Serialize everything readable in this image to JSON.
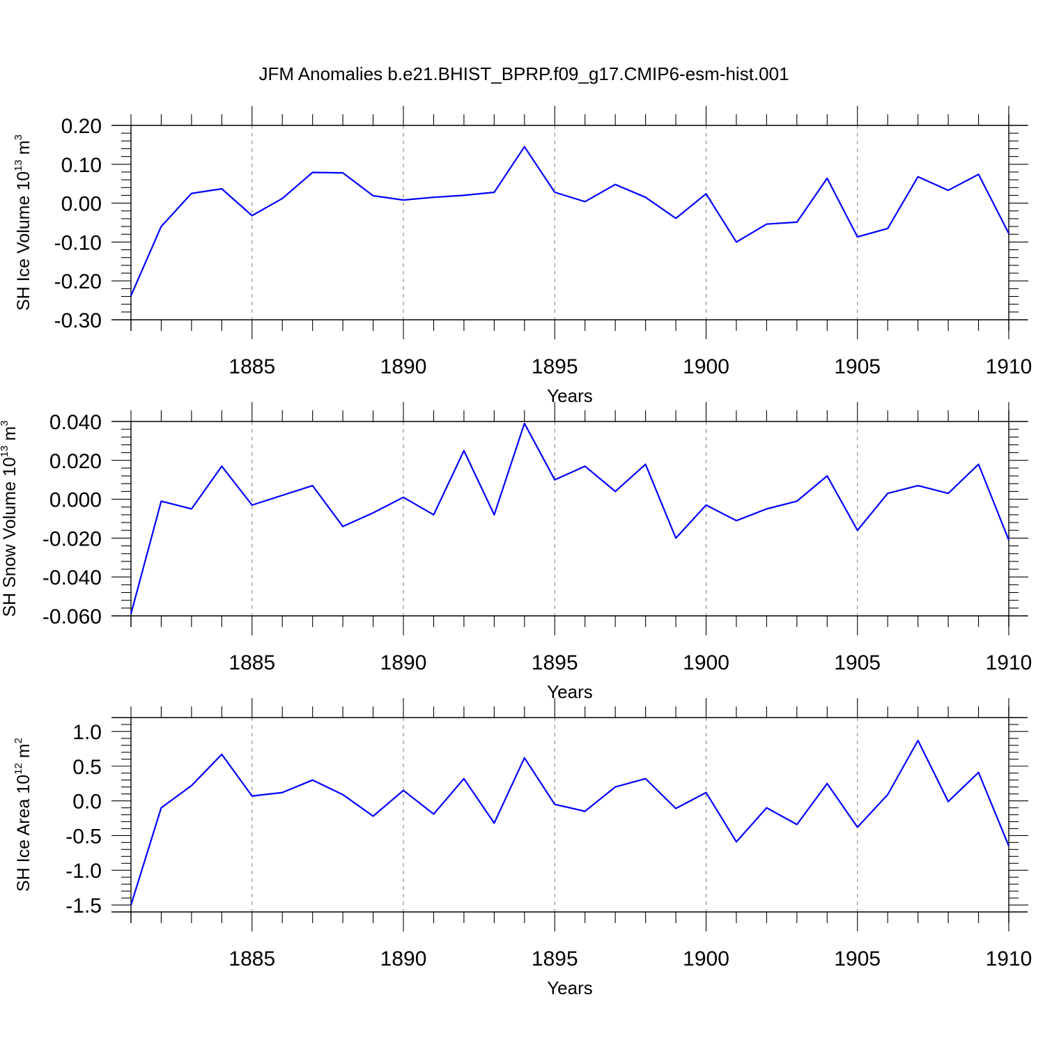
{
  "title": "JFM Anomalies b.e21.BHIST_BPRP.f09_g17.CMIP6-esm-hist.001",
  "colors": {
    "line": "#0000ff",
    "axes": "#000000",
    "grid": "#777777"
  },
  "chart_data": [
    {
      "type": "line",
      "ylabel": {
        "text": "SH Ice Volume 10",
        "sup": "13",
        "unit": " m",
        "unit_sup": "3"
      },
      "xlabel": "Years",
      "xlim": [
        1881,
        1910
      ],
      "ylim": [
        -0.3,
        0.2
      ],
      "yticks": [
        "0.20",
        "0.10",
        "0.00",
        "-0.10",
        "-0.20",
        "-0.30"
      ],
      "ytick_values": [
        0.2,
        0.1,
        0.0,
        -0.1,
        -0.2,
        -0.3
      ],
      "xticks": [
        "1885",
        "1890",
        "1895",
        "1900",
        "1905",
        "1910"
      ],
      "xtick_values": [
        1885,
        1890,
        1895,
        1900,
        1905,
        1910
      ],
      "grid": "vertical dashed at major x ticks",
      "x": [
        1881,
        1882,
        1883,
        1884,
        1885,
        1886,
        1887,
        1888,
        1889,
        1890,
        1891,
        1892,
        1893,
        1894,
        1895,
        1896,
        1897,
        1898,
        1899,
        1900,
        1901,
        1902,
        1903,
        1904,
        1905,
        1906,
        1907,
        1908,
        1909,
        1910
      ],
      "y": [
        -0.238,
        -0.06,
        0.025,
        0.037,
        -0.032,
        0.012,
        0.079,
        0.078,
        0.019,
        0.008,
        0.015,
        0.02,
        0.028,
        0.145,
        0.028,
        0.004,
        0.048,
        0.015,
        -0.039,
        0.024,
        -0.1,
        -0.054,
        -0.049,
        0.064,
        -0.087,
        -0.065,
        0.068,
        0.033,
        0.074,
        -0.078
      ]
    },
    {
      "type": "line",
      "ylabel": {
        "text": "SH Snow Volume 10",
        "sup": "13",
        "unit": " m",
        "unit_sup": "3"
      },
      "xlabel": "Years",
      "xlim": [
        1881,
        1910
      ],
      "ylim": [
        -0.06,
        0.04
      ],
      "yticks": [
        "0.040",
        "0.020",
        "0.000",
        "-0.020",
        "-0.040",
        "-0.060"
      ],
      "ytick_values": [
        0.04,
        0.02,
        0.0,
        -0.02,
        -0.04,
        -0.06
      ],
      "xticks": [
        "1885",
        "1890",
        "1895",
        "1900",
        "1905",
        "1910"
      ],
      "xtick_values": [
        1885,
        1890,
        1895,
        1900,
        1905,
        1910
      ],
      "grid": "vertical dashed at major x ticks",
      "x": [
        1881,
        1882,
        1883,
        1884,
        1885,
        1886,
        1887,
        1888,
        1889,
        1890,
        1891,
        1892,
        1893,
        1894,
        1895,
        1896,
        1897,
        1898,
        1899,
        1900,
        1901,
        1902,
        1903,
        1904,
        1905,
        1906,
        1907,
        1908,
        1909,
        1910
      ],
      "y": [
        -0.059,
        -0.001,
        -0.005,
        0.017,
        -0.003,
        0.002,
        0.007,
        -0.014,
        -0.007,
        0.001,
        -0.008,
        0.025,
        -0.008,
        0.039,
        0.01,
        0.017,
        0.004,
        0.018,
        -0.02,
        -0.003,
        -0.011,
        -0.005,
        -0.001,
        0.012,
        -0.016,
        0.003,
        0.007,
        0.003,
        0.018,
        -0.021
      ]
    },
    {
      "type": "line",
      "ylabel": {
        "text": "SH Ice Area 10",
        "sup": "12",
        "unit": " m",
        "unit_sup": "2"
      },
      "xlabel": "Years",
      "xlim": [
        1881,
        1910
      ],
      "ylim": [
        -1.6,
        1.2
      ],
      "yticks": [
        "1.0",
        "0.5",
        "0.0",
        "-0.5",
        "-1.0",
        "-1.5"
      ],
      "ytick_values": [
        1.0,
        0.5,
        0.0,
        -0.5,
        -1.0,
        -1.5
      ],
      "xticks": [
        "1885",
        "1890",
        "1895",
        "1900",
        "1905",
        "1910"
      ],
      "xtick_values": [
        1885,
        1890,
        1895,
        1900,
        1905,
        1910
      ],
      "grid": "vertical dashed at major x ticks",
      "x": [
        1881,
        1882,
        1883,
        1884,
        1885,
        1886,
        1887,
        1888,
        1889,
        1890,
        1891,
        1892,
        1893,
        1894,
        1895,
        1896,
        1897,
        1898,
        1899,
        1900,
        1901,
        1902,
        1903,
        1904,
        1905,
        1906,
        1907,
        1908,
        1909,
        1910
      ],
      "y": [
        -1.5,
        -0.1,
        0.22,
        0.67,
        0.07,
        0.12,
        0.3,
        0.09,
        -0.22,
        0.15,
        -0.19,
        0.32,
        -0.32,
        0.62,
        -0.05,
        -0.15,
        0.2,
        0.32,
        -0.11,
        0.12,
        -0.59,
        -0.1,
        -0.34,
        0.25,
        -0.38,
        0.09,
        0.87,
        -0.01,
        0.41,
        -0.65
      ]
    }
  ]
}
